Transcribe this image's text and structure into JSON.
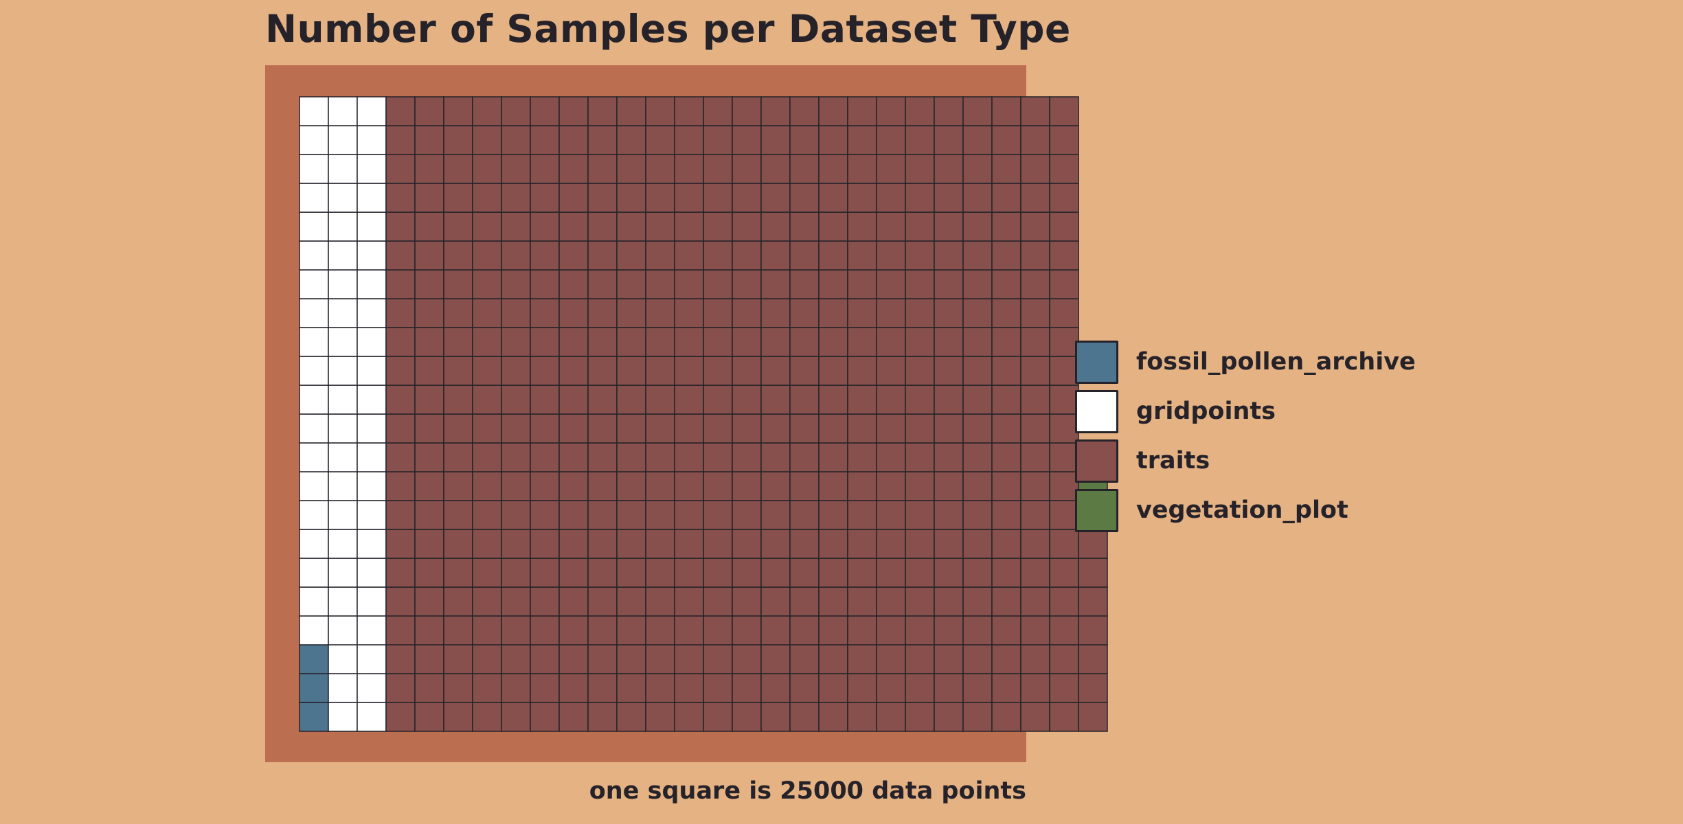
{
  "title": "Number of Samples per Dataset Type",
  "caption": "one square is 25000 data points",
  "colors": {
    "page_background": "#E5B283",
    "panel_background": "#BC6F50",
    "cell_border": "#25222A",
    "text": "#25222A"
  },
  "chart_data": {
    "type": "waffle",
    "title": "Number of Samples per Dataset Type",
    "unit_caption": "one square is 25000 data points",
    "squares_per_unit": 25000,
    "categories": [
      "fossil_pollen_archive",
      "gridpoints",
      "traits",
      "vegetation_plot"
    ],
    "values": [
      3,
      63,
      535,
      3
    ],
    "colors": [
      "#4E7590",
      "#FFFFFF",
      "#87504C",
      "#5B7A44"
    ],
    "rows": 22,
    "fill_order": "column-wise, bottom to top, left to right",
    "legend_position": "right",
    "grid": false
  },
  "legend": {
    "items": [
      {
        "label": "fossil_pollen_archive",
        "color": "#4E7590"
      },
      {
        "label": "gridpoints",
        "color": "#FFFFFF"
      },
      {
        "label": "traits",
        "color": "#87504C"
      },
      {
        "label": "vegetation_plot",
        "color": "#5B7A44"
      }
    ]
  }
}
